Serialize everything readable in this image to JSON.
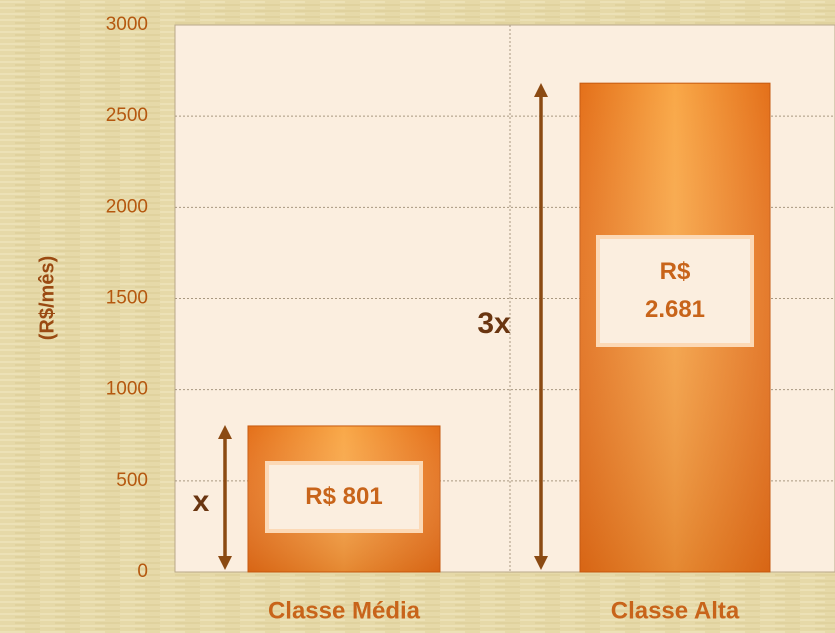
{
  "chart_data": {
    "type": "bar",
    "y_label": "(R$/mês)",
    "categories": [
      "Classe Média",
      "Classe Alta"
    ],
    "values": [
      801,
      2681
    ],
    "value_labels": [
      "R$ 801",
      "R$ 2.681"
    ],
    "color": "#f08a2a",
    "ylim": [
      0,
      3000
    ],
    "yticks": [
      0,
      500,
      1000,
      1500,
      2000,
      2500,
      3000
    ],
    "grid": true,
    "annotations": [
      "x",
      "3x"
    ]
  }
}
